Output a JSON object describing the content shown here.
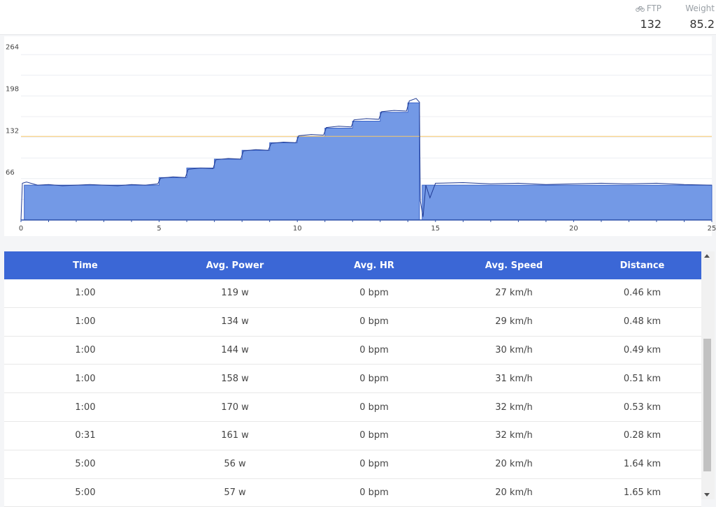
{
  "header": {
    "ftp": {
      "label": "FTP",
      "value": "132",
      "icon": "bike-icon"
    },
    "weight": {
      "label": "Weight",
      "value": "85.2"
    }
  },
  "chart_data": {
    "type": "area",
    "title": "",
    "xlabel": "",
    "ylabel": "",
    "xlim": [
      0,
      25
    ],
    "ylim": [
      0,
      290
    ],
    "x_ticks": [
      0,
      5,
      10,
      15,
      20,
      25
    ],
    "y_ticks": [
      66,
      132,
      198,
      264
    ],
    "reference_line": {
      "value": 132,
      "color": "#f5c76a"
    },
    "series": [
      {
        "type": "area",
        "color": "#7399e6",
        "x": [
          0,
          0.12,
          0.12,
          5,
          5,
          6,
          6,
          7,
          7,
          8,
          8,
          9,
          9,
          10,
          10,
          11,
          11,
          12,
          12,
          13,
          13,
          14,
          14,
          14.42,
          14.42,
          14.52,
          14.52,
          14.95,
          14.95,
          25
        ],
        "values": [
          0,
          0,
          55,
          55,
          67,
          67,
          82,
          82,
          96,
          96,
          110,
          110,
          122,
          122,
          132,
          132,
          145,
          145,
          156,
          156,
          170,
          170,
          185,
          185,
          0,
          0,
          55,
          55,
          55,
          55
        ]
      },
      {
        "type": "line",
        "color": "#1f3a93",
        "x": [
          0,
          0.05,
          0.2,
          0.6,
          1,
          1.5,
          2,
          2.5,
          3,
          3.5,
          4,
          4.5,
          4.95,
          5.05,
          5.5,
          5.95,
          6.05,
          6.5,
          6.95,
          7.05,
          7.5,
          7.95,
          8.05,
          8.5,
          8.95,
          9.05,
          9.5,
          9.95,
          10.05,
          10.5,
          10.95,
          11.05,
          11.5,
          11.95,
          12.05,
          12.5,
          12.95,
          13.05,
          13.5,
          13.95,
          14.05,
          14.3,
          14.42,
          14.45,
          14.55,
          14.65,
          14.8,
          15,
          16,
          17,
          18,
          19,
          20,
          21,
          22,
          23,
          24,
          25
        ],
        "values": [
          0,
          58,
          60,
          55,
          56,
          54,
          55,
          56,
          55,
          54,
          56,
          55,
          57,
          66,
          68,
          67,
          80,
          82,
          81,
          95,
          97,
          96,
          109,
          111,
          110,
          121,
          123,
          122,
          133,
          135,
          134,
          146,
          148,
          147,
          158,
          160,
          159,
          171,
          173,
          172,
          188,
          192,
          186,
          30,
          5,
          55,
          35,
          58,
          59,
          57,
          58,
          56,
          57,
          58,
          57,
          58,
          56,
          55
        ]
      }
    ]
  },
  "table": {
    "columns": [
      "Time",
      "Avg. Power",
      "Avg. HR",
      "Avg. Speed",
      "Distance"
    ],
    "rows": [
      [
        "1:00",
        "119 w",
        "0 bpm",
        "27 km/h",
        "0.46 km"
      ],
      [
        "1:00",
        "134 w",
        "0 bpm",
        "29 km/h",
        "0.48 km"
      ],
      [
        "1:00",
        "144 w",
        "0 bpm",
        "30 km/h",
        "0.49 km"
      ],
      [
        "1:00",
        "158 w",
        "0 bpm",
        "31 km/h",
        "0.51 km"
      ],
      [
        "1:00",
        "170 w",
        "0 bpm",
        "32 km/h",
        "0.53 km"
      ],
      [
        "0:31",
        "161 w",
        "0 bpm",
        "32 km/h",
        "0.28 km"
      ],
      [
        "5:00",
        "56 w",
        "0 bpm",
        "20 km/h",
        "1.64 km"
      ],
      [
        "5:00",
        "57 w",
        "0 bpm",
        "20 km/h",
        "1.65 km"
      ]
    ]
  }
}
